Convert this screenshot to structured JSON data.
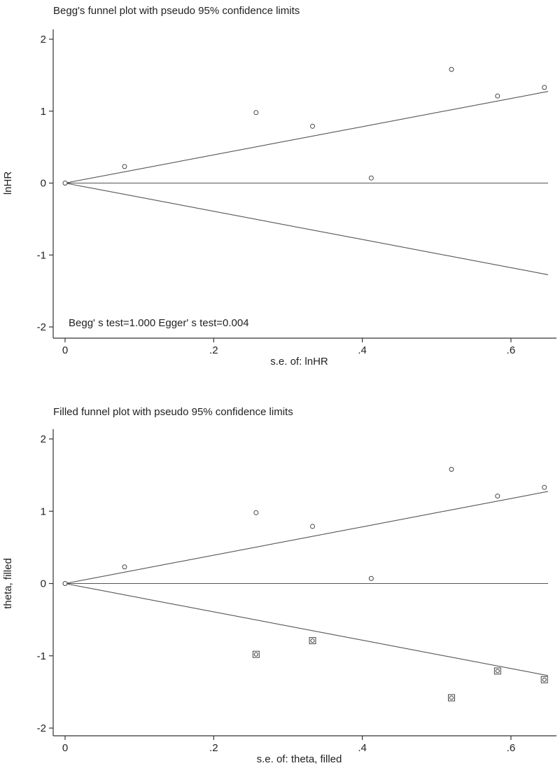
{
  "chart_data": [
    {
      "type": "scatter",
      "title": "Begg's funnel plot with pseudo 95% confidence limits",
      "xlabel": "s.e. of: lnHR",
      "ylabel": "lnHR",
      "xlim": [
        0,
        0.65
      ],
      "ylim": [
        -2,
        2
      ],
      "xticks": [
        0,
        0.2,
        0.4,
        0.6
      ],
      "xtick_labels": [
        "0",
        ".2",
        ".4",
        ".6"
      ],
      "yticks": [
        -2,
        -1,
        0,
        1,
        2
      ],
      "ytick_labels": [
        "-2",
        "-1",
        "0",
        "1",
        "2"
      ],
      "annotation": "Begg' s test=1.000 Egger' s test=0.004",
      "pooled_estimate": 0,
      "funnel_limit_slope": 1.96,
      "series": [
        {
          "marker": "circle",
          "x": [
            0.0,
            0.08,
            0.257,
            0.333,
            0.412,
            0.52,
            0.582,
            0.645
          ],
          "y": [
            0.0,
            0.23,
            0.98,
            0.79,
            0.07,
            1.58,
            1.21,
            1.33
          ]
        }
      ]
    },
    {
      "type": "scatter",
      "title": "Filled funnel plot with pseudo 95% confidence limits",
      "xlabel": "s.e. of: theta, filled",
      "ylabel": "theta, filled",
      "xlim": [
        0,
        0.65
      ],
      "ylim": [
        -2,
        2
      ],
      "xticks": [
        0,
        0.2,
        0.4,
        0.6
      ],
      "xtick_labels": [
        "0",
        ".2",
        ".4",
        ".6"
      ],
      "yticks": [
        -2,
        -1,
        0,
        1,
        2
      ],
      "ytick_labels": [
        "-2",
        "-1",
        "0",
        "1",
        "2"
      ],
      "pooled_estimate": 0,
      "funnel_limit_slope": 1.96,
      "series": [
        {
          "marker": "circle",
          "x": [
            0.0,
            0.08,
            0.257,
            0.333,
            0.412,
            0.52,
            0.582,
            0.645
          ],
          "y": [
            0.0,
            0.23,
            0.98,
            0.79,
            0.07,
            1.58,
            1.21,
            1.33
          ]
        },
        {
          "marker": "boxed-circle",
          "x": [
            0.257,
            0.333,
            0.52,
            0.582,
            0.645
          ],
          "y": [
            -0.98,
            -0.79,
            -1.58,
            -1.21,
            -1.33
          ]
        }
      ]
    }
  ]
}
